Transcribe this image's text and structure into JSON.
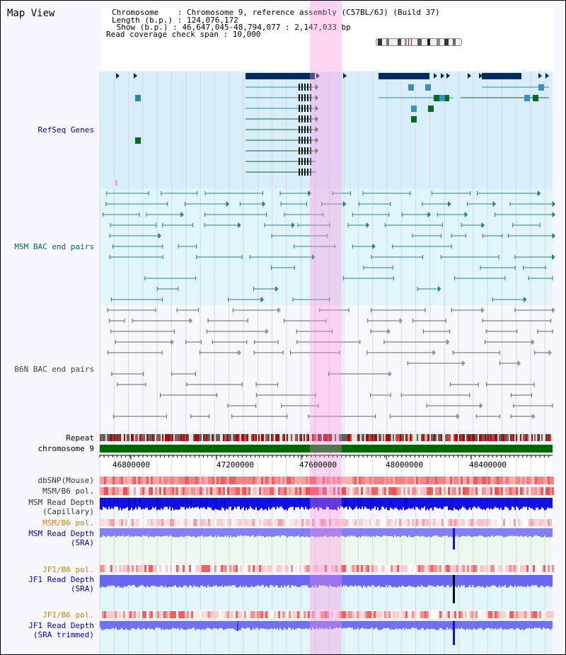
{
  "header": {
    "title": "Map View",
    "info_lines": [
      "Chromosome    : Chromosome 9, reference assembly (C57BL/6J) (Build 37)",
      "Length (b.p.) : 124,076,172",
      " Show (b.p.) : 46,647,045-48,794,077 : 2,147,033 bp",
      "Read coverage check span : 10,000"
    ]
  },
  "tracks": {
    "refseq": "RefSeq Genes",
    "msm_bac": "MSM BAC end pairs",
    "b6n_bac": "B6N BAC end pairs",
    "repeat": "Repeat",
    "chromosome": "chromosome 9",
    "dbsnp": "dbSNP(Mouse)",
    "msm_b6_pol": "MSM/B6 pol.",
    "msm_depth_cap": "MSM Read Depth\n(Capillary)",
    "msm_b6_pol2": "MSM/B6 pol.",
    "msm_depth_sra": "MSM Read Depth\n(SRA)",
    "jf1_b6_pol": "JF1/B6 pol.",
    "jf1_depth_sra": "JF1 Read Depth\n(SRA)",
    "jf1_b6_pol2": "JF1/B6 pol.",
    "jf1_depth_trim": "JF1 Read Depth\n(SRA trimmed)"
  },
  "axis": {
    "ticks": [
      "46800000",
      "47200000",
      "47600000",
      "48000000",
      "48400000"
    ]
  },
  "colors": {
    "refseq_label": "#0000c0",
    "msm_label": "#006080",
    "b6n_label": "#404040",
    "pol_label": "#e08000",
    "depth_label": "#0000c0",
    "chromosome_bar": "#006600",
    "highlight": "#ff8cdc"
  }
}
